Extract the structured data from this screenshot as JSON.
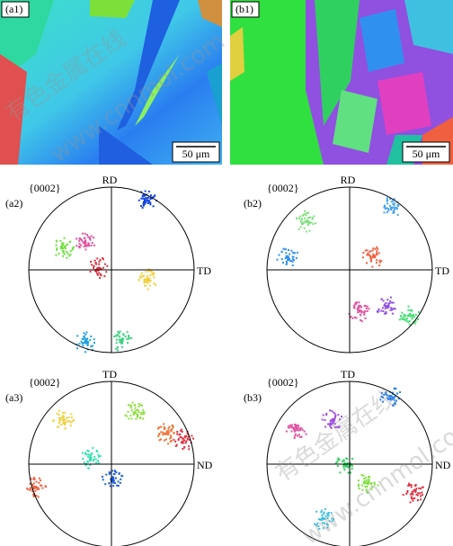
{
  "panels": [
    {
      "label": "(a1)",
      "scale_bar": "50 μm"
    },
    {
      "label": "(b1)",
      "scale_bar": "50 μm"
    }
  ],
  "pole_figures": [
    {
      "label": "(a2)",
      "plane": "{0002}",
      "top_axis": "RD",
      "right_axis": "TD"
    },
    {
      "label": "(b2)",
      "plane": "{0002}",
      "top_axis": "RD",
      "right_axis": "TD"
    },
    {
      "label": "(a3)",
      "plane": "{0002}",
      "top_axis": "TD",
      "right_axis": "ND"
    },
    {
      "label": "(b3)",
      "plane": "{0002}",
      "top_axis": "TD",
      "right_axis": "ND"
    }
  ],
  "watermark": [
    "有色金属在线",
    "www.cnnmol.com"
  ]
}
